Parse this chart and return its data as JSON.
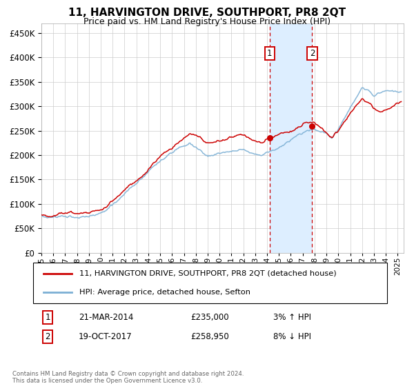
{
  "title": "11, HARVINGTON DRIVE, SOUTHPORT, PR8 2QT",
  "subtitle": "Price paid vs. HM Land Registry's House Price Index (HPI)",
  "footer": "Contains HM Land Registry data © Crown copyright and database right 2024.\nThis data is licensed under the Open Government Licence v3.0.",
  "legend_line1": "11, HARVINGTON DRIVE, SOUTHPORT, PR8 2QT (detached house)",
  "legend_line2": "HPI: Average price, detached house, Sefton",
  "t1_date": "21-MAR-2014",
  "t1_price": "£235,000",
  "t1_hpi": "3% ↑ HPI",
  "t2_date": "19-OCT-2017",
  "t2_price": "£258,950",
  "t2_hpi": "8% ↓ HPI",
  "sale1_year": 2014.22,
  "sale1_price": 235000,
  "sale2_year": 2017.8,
  "sale2_price": 258950,
  "red_color": "#cc0000",
  "blue_color": "#7bafd4",
  "shading_color": "#ddeeff",
  "ylim_min": 0,
  "ylim_max": 470000,
  "xlim_min": 1995,
  "xlim_max": 2025.5,
  "yticks": [
    0,
    50000,
    100000,
    150000,
    200000,
    250000,
    300000,
    350000,
    400000,
    450000
  ],
  "xtick_start": 1995,
  "xtick_end": 2025
}
